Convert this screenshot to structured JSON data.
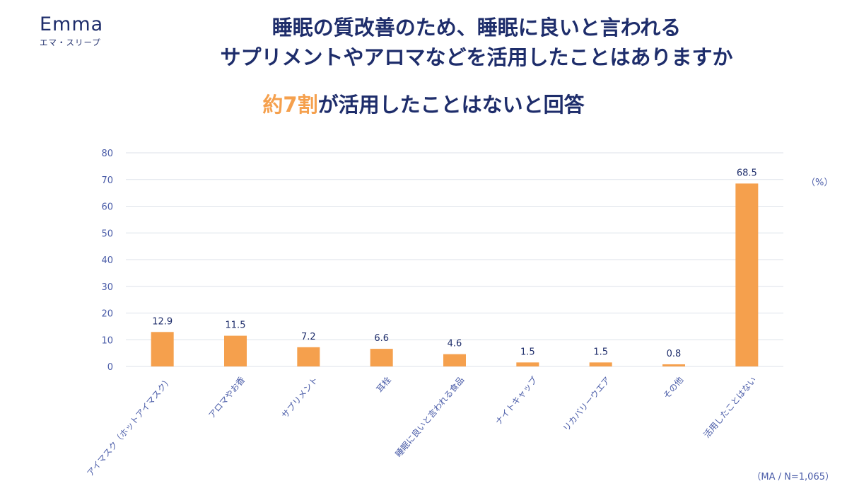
{
  "logo": {
    "word": "Emma",
    "sub": "エマ・スリープ"
  },
  "title_lines": [
    "睡眠の質改善のため、睡眠に良いと言われる",
    "サプリメントやアロマなどを活用したことはありますか"
  ],
  "subtitle": {
    "accent": "約7割",
    "rest": "が活用したことはないと回答"
  },
  "colors": {
    "bar": "#f5a04d",
    "navy": "#1e2d6b",
    "axis_text": "#4a5ca8",
    "grid": "#dde2ea"
  },
  "chart_data": {
    "type": "bar",
    "categories": [
      "アイマスク（ホットアイマスク）",
      "アロマやお香",
      "サプリメント",
      "耳栓",
      "睡眠に良いと言われる食品",
      "ナイトキャップ",
      "リカバリーウエア",
      "その他",
      "活用したことはない"
    ],
    "values": [
      12.9,
      11.5,
      7.2,
      6.6,
      4.6,
      1.5,
      1.5,
      0.8,
      68.5
    ],
    "data_labels": [
      "12.9",
      "11.5",
      "7.2",
      "6.6",
      "4.6",
      "1.5",
      "1.5",
      "0.8",
      "68.5"
    ],
    "yticks": [
      0,
      10,
      20,
      30,
      40,
      50,
      60,
      70,
      80
    ],
    "ylim": [
      0,
      80
    ],
    "grid": true,
    "unit_label": "（%）",
    "note": "（MA / N=1,065）"
  }
}
